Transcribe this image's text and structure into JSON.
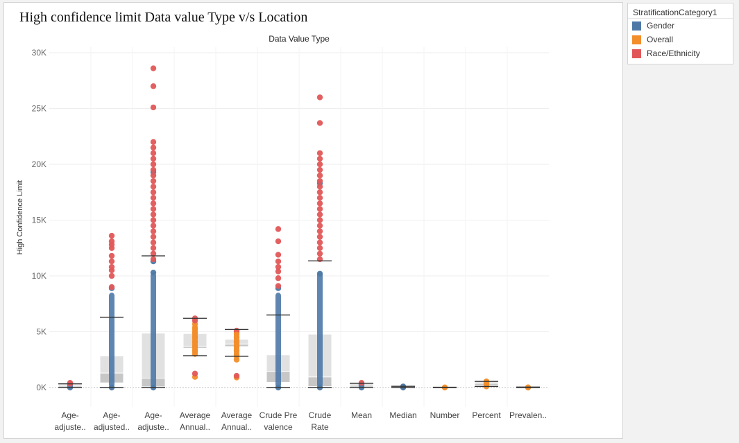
{
  "title": "High confidence limit  Data value Type v/s Location",
  "legend": {
    "title": "StratificationCategory1",
    "items": [
      {
        "label": "Gender",
        "color": "#4e79a7"
      },
      {
        "label": "Overall",
        "color": "#f28e2b"
      },
      {
        "label": "Race/Ethnicity",
        "color": "#e15759"
      }
    ]
  },
  "chart_data": {
    "type": "box-and-scatter",
    "column_header": "Data Value Type",
    "ylabel": "High Confidence Limit",
    "ylim": [
      0,
      30000
    ],
    "yticks": [
      {
        "value": 0,
        "label": "0K"
      },
      {
        "value": 5000,
        "label": "5K"
      },
      {
        "value": 10000,
        "label": "10K"
      },
      {
        "value": 15000,
        "label": "15K"
      },
      {
        "value": 20000,
        "label": "20K"
      },
      {
        "value": 25000,
        "label": "25K"
      },
      {
        "value": 30000,
        "label": "30K"
      }
    ],
    "grid": true,
    "legend_position": "top-right",
    "categories": [
      {
        "label": [
          "Age-",
          "adjuste.."
        ],
        "box": {
          "q1": 50,
          "median": 130,
          "q3": 250,
          "wl": 0,
          "wh": 330
        },
        "points": {
          "Gender": [
            0,
            150,
            300
          ],
          "Race/Ethnicity": [
            350,
            420
          ]
        }
      },
      {
        "label": [
          "Age-",
          "adjusted.."
        ],
        "box": {
          "q1": 450,
          "median": 1300,
          "q3": 2800,
          "wl": 0,
          "wh": 6300
        },
        "points": {
          "Gender": [
            0,
            8900
          ],
          "Race/Ethnicity": [
            9000,
            10000,
            10500,
            10800,
            11300,
            11800,
            12500,
            12800,
            13100,
            13600
          ]
        }
      },
      {
        "label": [
          "Age-",
          "adjuste.."
        ],
        "box": {
          "q1": 100,
          "median": 850,
          "q3": 4850,
          "wl": 0,
          "wh": 11800
        },
        "points": {
          "Gender": [
            0,
            10300,
            11300,
            19300
          ],
          "Race/Ethnicity": [
            11500,
            12000,
            12500,
            13000,
            13500,
            14000,
            14500,
            15000,
            15500,
            16000,
            16500,
            17000,
            17500,
            18000,
            18500,
            19000,
            19500,
            20000,
            20500,
            21000,
            21500,
            22000,
            25100,
            27000,
            28600
          ]
        }
      },
      {
        "label": [
          "Average",
          "Annual.."
        ],
        "box": {
          "q1": 3550,
          "median": 3700,
          "q3": 4800,
          "wl": 2850,
          "wh": 6200
        },
        "points": {
          "Overall": [
            950,
            3000,
            3300,
            3700,
            4100,
            4500,
            4900,
            5300,
            5700
          ],
          "Race/Ethnicity": [
            1250,
            6000,
            6200
          ]
        }
      },
      {
        "label": [
          "Average",
          "Annual.."
        ],
        "box": {
          "q1": 3700,
          "median": 3900,
          "q3": 4300,
          "wl": 2800,
          "wh": 5200
        },
        "points": {
          "Overall": [
            900,
            2500,
            2900,
            3300,
            3700,
            4100,
            4500,
            4800,
            5000
          ],
          "Race/Ethnicity": [
            1050,
            5100
          ]
        }
      },
      {
        "label": [
          "Crude Pre",
          "valence"
        ],
        "box": {
          "q1": 500,
          "median": 1450,
          "q3": 2900,
          "wl": 0,
          "wh": 6500
        },
        "points": {
          "Gender": [
            0,
            8900
          ],
          "Race/Ethnicity": [
            9100,
            9800,
            10400,
            10800,
            11300,
            11900,
            13100,
            14200
          ]
        }
      },
      {
        "label": [
          "Crude",
          "Rate"
        ],
        "box": {
          "q1": 120,
          "median": 950,
          "q3": 4750,
          "wl": 0,
          "wh": 11350
        },
        "points": {
          "Gender": [
            0,
            10200,
            18300
          ],
          "Race/Ethnicity": [
            11500,
            12000,
            12500,
            13000,
            13500,
            14000,
            14500,
            15000,
            15500,
            16000,
            16500,
            17000,
            17500,
            18000,
            18500,
            19000,
            19500,
            20000,
            20500,
            21000,
            23700,
            26000
          ]
        }
      },
      {
        "label": [
          "Mean",
          ""
        ],
        "box": {
          "q1": 80,
          "median": 200,
          "q3": 320,
          "wl": 0,
          "wh": 380
        },
        "points": {
          "Gender": [
            0,
            200,
            300
          ],
          "Race/Ethnicity": [
            420
          ]
        }
      },
      {
        "label": [
          "Median",
          ""
        ],
        "box": {
          "q1": 30,
          "median": 60,
          "q3": 90,
          "wl": 0,
          "wh": 110
        },
        "points": {
          "Gender": [
            0,
            60,
            100
          ]
        }
      },
      {
        "label": [
          "Number",
          ""
        ],
        "box": {
          "q1": 0,
          "median": 5,
          "q3": 15,
          "wl": 0,
          "wh": 25
        },
        "points": {
          "Overall": [
            0,
            10
          ]
        }
      },
      {
        "label": [
          "Percent",
          ""
        ],
        "box": {
          "q1": 200,
          "median": 380,
          "q3": 500,
          "wl": 100,
          "wh": 550
        },
        "points": {
          "Overall": [
            100,
            250,
            400,
            520,
            550
          ]
        }
      },
      {
        "label": [
          "Prevalen..",
          ""
        ],
        "box": {
          "q1": 5,
          "median": 15,
          "q3": 30,
          "wl": 0,
          "wh": 40
        },
        "points": {
          "Overall": [
            0,
            20
          ]
        }
      }
    ]
  }
}
